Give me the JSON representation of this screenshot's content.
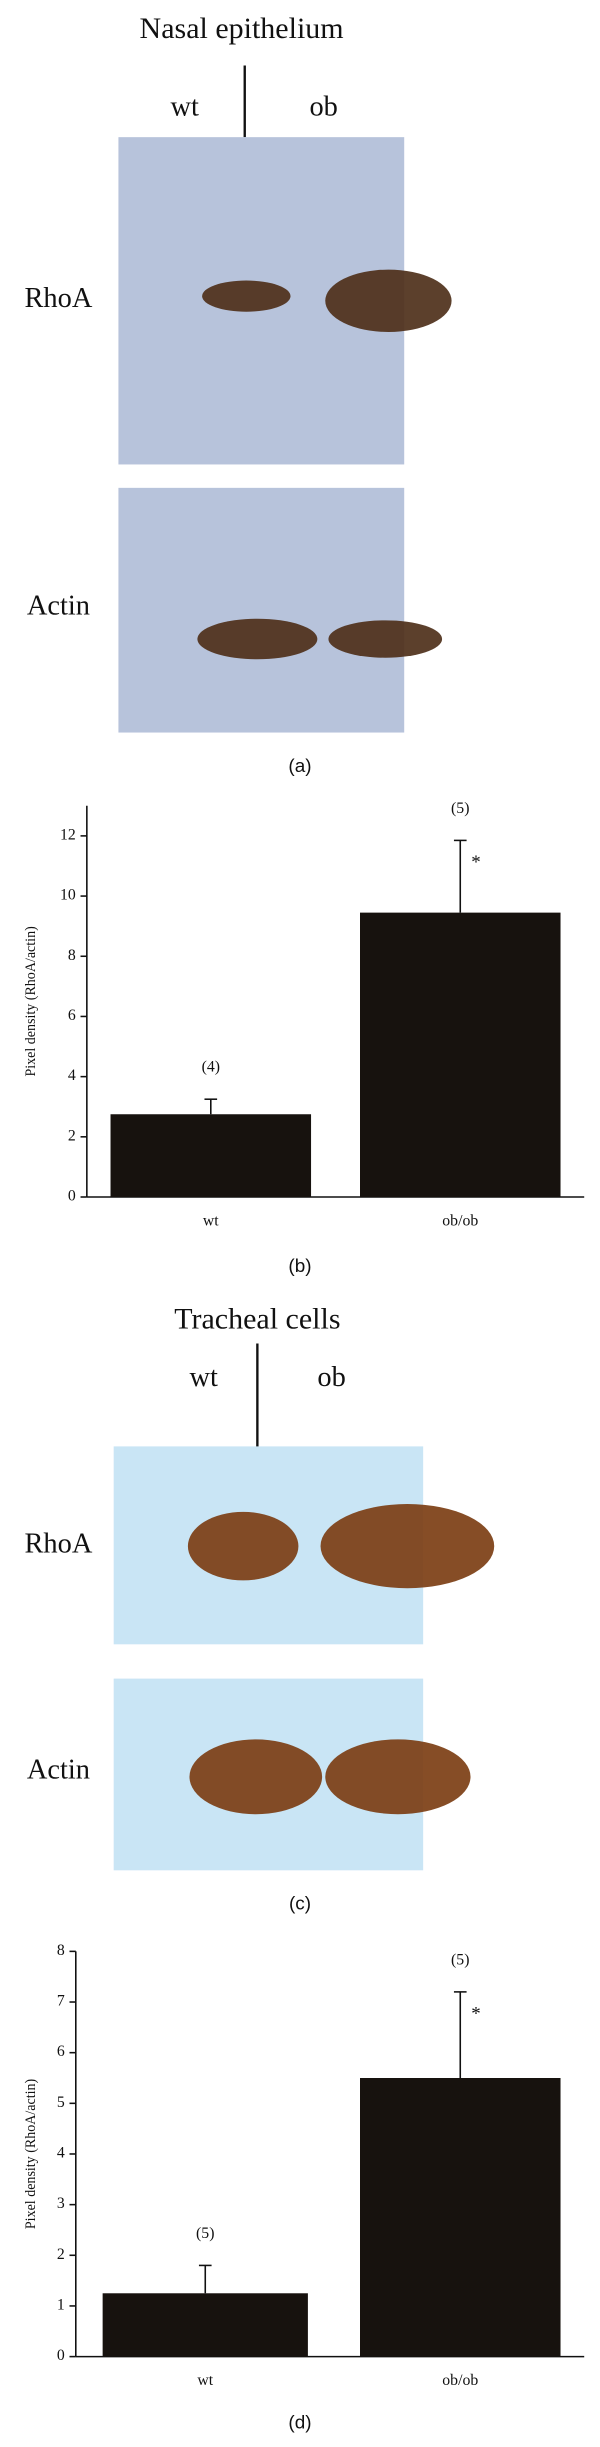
{
  "blots": [
    {
      "title": "Nasal epithelium",
      "lanes": [
        "wt",
        "ob"
      ],
      "rows": [
        "RhoA",
        "Actin"
      ],
      "caption": "(a)"
    },
    {
      "title": "Tracheal cells",
      "lanes": [
        "wt",
        "ob"
      ],
      "rows": [
        "RhoA",
        "Actin"
      ],
      "caption": "(c)"
    }
  ],
  "chart_data": [
    {
      "type": "bar",
      "y_label": "Pixel density (RhoA/actin)",
      "categories": [
        "wt",
        "ob/ob"
      ],
      "values": [
        2.75,
        9.45
      ],
      "errors": [
        0.5,
        2.4
      ],
      "n_labels": [
        "(4)",
        "(5)"
      ],
      "star_labels": [
        null,
        "*"
      ],
      "color": "#17120e",
      "ylim": [
        0,
        13
      ],
      "yticks": [
        0,
        2,
        4,
        6,
        8,
        10,
        12
      ],
      "caption": "(b)"
    },
    {
      "type": "bar",
      "y_label": "Pixel density (RhoA/actin)",
      "categories": [
        "wt",
        "ob/ob"
      ],
      "values": [
        1.25,
        5.5
      ],
      "errors": [
        0.55,
        1.7
      ],
      "n_labels": [
        "(5)",
        "(5)"
      ],
      "star_labels": [
        null,
        "*"
      ],
      "color": "#17120e",
      "ylim": [
        0,
        8
      ],
      "yticks": [
        0,
        1,
        2,
        3,
        4,
        5,
        6,
        7,
        8
      ],
      "caption": "(d)"
    }
  ]
}
